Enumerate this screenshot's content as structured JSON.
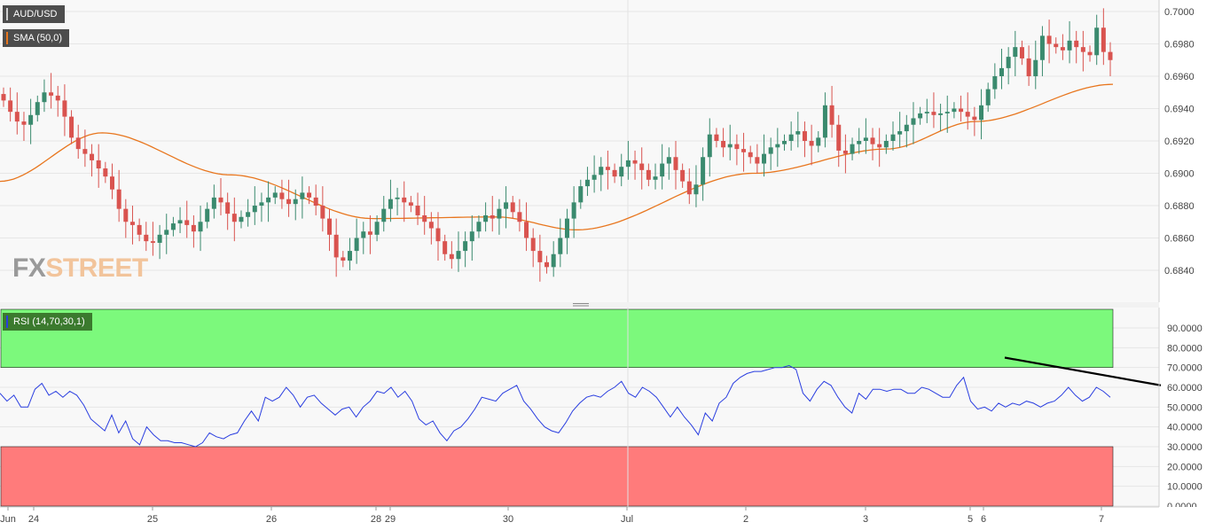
{
  "legend": {
    "pair": "AUD/USD",
    "sma": "SMA (50,0)",
    "rsi": "RSI (14,70,30,1)"
  },
  "logo": {
    "part1": "FX",
    "part2": "STREET"
  },
  "colors": {
    "up_candle": "#3a8a6e",
    "down_candle": "#d9534f",
    "sma_line": "#e8761e",
    "rsi_line": "#2a3ee0",
    "overbought_zone": "#7cf97c",
    "oversold_zone": "#ff7b7b",
    "trendline": "#000000"
  },
  "chart_data": [
    {
      "type": "candlestick",
      "title": "AUD/USD",
      "yticks": [
        "0.7000",
        "0.6980",
        "0.6960",
        "0.6940",
        "0.6920",
        "0.6900",
        "0.6880",
        "0.6860",
        "0.6840"
      ],
      "ylim": [
        0.6825,
        0.7005
      ],
      "xticks": [
        "Jun",
        "24",
        "25",
        "26",
        "28",
        "29",
        "30",
        "Jul",
        "2",
        "3",
        "5",
        "6",
        "7"
      ],
      "x_range": [
        "Jun 23 (partial)",
        "Jul 7 (partial)"
      ],
      "sma": {
        "name": "SMA (50,0)",
        "start": 0.6895,
        "peak": 0.6925,
        "trough": 0.6872,
        "end": 0.6955
      },
      "close": [
        0.6945,
        0.6938,
        0.6932,
        0.693,
        0.6936,
        0.6944,
        0.695,
        0.6948,
        0.6945,
        0.6935,
        0.6922,
        0.6915,
        0.6912,
        0.6908,
        0.6903,
        0.6898,
        0.689,
        0.6878,
        0.687,
        0.6868,
        0.6862,
        0.6858,
        0.6857,
        0.6862,
        0.6865,
        0.6869,
        0.6871,
        0.6868,
        0.6864,
        0.687,
        0.6878,
        0.6885,
        0.6882,
        0.6875,
        0.687,
        0.6873,
        0.6876,
        0.688,
        0.6882,
        0.6885,
        0.6888,
        0.6884,
        0.6881,
        0.6884,
        0.6888,
        0.6885,
        0.688,
        0.6872,
        0.6862,
        0.6848,
        0.6846,
        0.6852,
        0.686,
        0.6864,
        0.6862,
        0.687,
        0.6878,
        0.6884,
        0.6885,
        0.6882,
        0.688,
        0.6874,
        0.687,
        0.6866,
        0.6858,
        0.685,
        0.6847,
        0.6852,
        0.6858,
        0.6864,
        0.687,
        0.6874,
        0.6872,
        0.6878,
        0.6882,
        0.6876,
        0.687,
        0.686,
        0.6852,
        0.6845,
        0.6842,
        0.685,
        0.686,
        0.6872,
        0.6882,
        0.6892,
        0.6896,
        0.6899,
        0.6904,
        0.6902,
        0.6898,
        0.6904,
        0.6908,
        0.6906,
        0.6902,
        0.6896,
        0.6898,
        0.6906,
        0.691,
        0.6902,
        0.6895,
        0.6887,
        0.6893,
        0.691,
        0.6924,
        0.692,
        0.6916,
        0.6918,
        0.6915,
        0.6913,
        0.691,
        0.6906,
        0.6912,
        0.6916,
        0.6918,
        0.692,
        0.6924,
        0.6926,
        0.692,
        0.6917,
        0.6922,
        0.6942,
        0.693,
        0.6914,
        0.6912,
        0.6918,
        0.692,
        0.6922,
        0.6918,
        0.6916,
        0.692,
        0.6924,
        0.6926,
        0.693,
        0.6934,
        0.6937,
        0.6938,
        0.6936,
        0.6937,
        0.6938,
        0.694,
        0.6938,
        0.6935,
        0.6933,
        0.6942,
        0.6952,
        0.696,
        0.6965,
        0.6972,
        0.6978,
        0.6971,
        0.696,
        0.697,
        0.6985,
        0.698,
        0.6978,
        0.6976,
        0.6982,
        0.6978,
        0.6975,
        0.6973,
        0.699,
        0.6975,
        0.697
      ]
    },
    {
      "type": "line",
      "title": "RSI (14,70,30,1)",
      "yticks": [
        "90.0000",
        "80.0000",
        "70.0000",
        "60.0000",
        "50.0000",
        "40.0000",
        "30.0000",
        "20.0000",
        "10.0000",
        "0.0000"
      ],
      "ylim": [
        0,
        100
      ],
      "overbought": 70,
      "oversold": 30,
      "trendline": {
        "from": 75,
        "to": 61
      },
      "values": [
        57,
        53,
        56,
        50,
        50,
        59,
        62,
        56,
        58,
        55,
        58,
        56,
        51,
        44,
        41,
        38,
        46,
        37,
        43,
        34,
        31,
        40,
        36,
        33,
        33,
        32,
        32,
        31,
        30,
        32,
        37,
        35,
        34,
        36,
        37,
        43,
        48,
        43,
        55,
        53,
        55,
        60,
        56,
        50,
        55,
        56,
        52,
        49,
        46,
        49,
        50,
        45,
        50,
        53,
        58,
        57,
        60,
        55,
        58,
        53,
        44,
        41,
        43,
        37,
        33,
        38,
        40,
        44,
        49,
        55,
        54,
        53,
        57,
        59,
        61,
        53,
        49,
        44,
        40,
        38,
        37,
        42,
        48,
        52,
        55,
        56,
        55,
        58,
        60,
        63,
        57,
        55,
        60,
        58,
        55,
        50,
        45,
        50,
        45,
        41,
        36,
        47,
        43,
        52,
        55,
        62,
        65,
        67,
        68,
        68,
        69,
        70,
        70,
        71,
        69,
        57,
        53,
        59,
        63,
        61,
        55,
        50,
        47,
        57,
        54,
        59,
        59,
        58,
        59,
        59,
        57,
        57,
        60,
        59,
        57,
        55,
        55,
        61,
        65,
        53,
        49,
        50,
        48,
        52,
        50,
        52,
        51,
        53,
        52,
        50,
        52,
        53,
        56,
        60,
        56,
        53,
        55,
        60,
        58,
        55
      ]
    }
  ]
}
